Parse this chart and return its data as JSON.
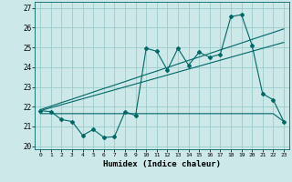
{
  "title": "",
  "xlabel": "Humidex (Indice chaleur)",
  "background_color": "#cce8e8",
  "grid_color": "#99cccc",
  "line_color": "#006666",
  "xlim": [
    -0.5,
    23.5
  ],
  "ylim": [
    19.85,
    27.3
  ],
  "yticks": [
    20,
    21,
    22,
    23,
    24,
    25,
    26,
    27
  ],
  "xticks": [
    0,
    1,
    2,
    3,
    4,
    5,
    6,
    7,
    8,
    9,
    10,
    11,
    12,
    13,
    14,
    15,
    16,
    17,
    18,
    19,
    20,
    21,
    22,
    23
  ],
  "x": [
    0,
    1,
    2,
    3,
    4,
    5,
    6,
    7,
    8,
    9,
    10,
    11,
    12,
    13,
    14,
    15,
    16,
    17,
    18,
    19,
    20,
    21,
    22,
    23
  ],
  "y_main": [
    21.8,
    21.75,
    21.35,
    21.25,
    20.55,
    20.85,
    20.45,
    20.48,
    21.75,
    21.55,
    24.95,
    24.8,
    23.85,
    24.95,
    24.1,
    24.75,
    24.5,
    24.65,
    26.55,
    26.65,
    25.1,
    22.65,
    22.35,
    21.25
  ],
  "y_min_line": [
    21.65,
    21.65,
    21.65,
    21.65,
    21.65,
    21.65,
    21.65,
    21.65,
    21.65,
    21.65,
    21.65,
    21.65,
    21.65,
    21.65,
    21.65,
    21.65,
    21.65,
    21.65,
    21.65,
    21.65,
    21.65,
    21.65,
    21.65,
    21.25
  ],
  "y_trend1": [
    21.8,
    21.95,
    22.1,
    22.25,
    22.4,
    22.55,
    22.7,
    22.85,
    23.0,
    23.15,
    23.3,
    23.45,
    23.6,
    23.75,
    23.9,
    24.05,
    24.2,
    24.35,
    24.5,
    24.65,
    24.8,
    24.95,
    25.1,
    25.25
  ],
  "y_trend2": [
    21.85,
    22.03,
    22.21,
    22.38,
    22.56,
    22.74,
    22.92,
    23.09,
    23.27,
    23.45,
    23.63,
    23.8,
    23.98,
    24.16,
    24.34,
    24.51,
    24.69,
    24.87,
    25.04,
    25.22,
    25.4,
    25.58,
    25.75,
    25.93
  ]
}
